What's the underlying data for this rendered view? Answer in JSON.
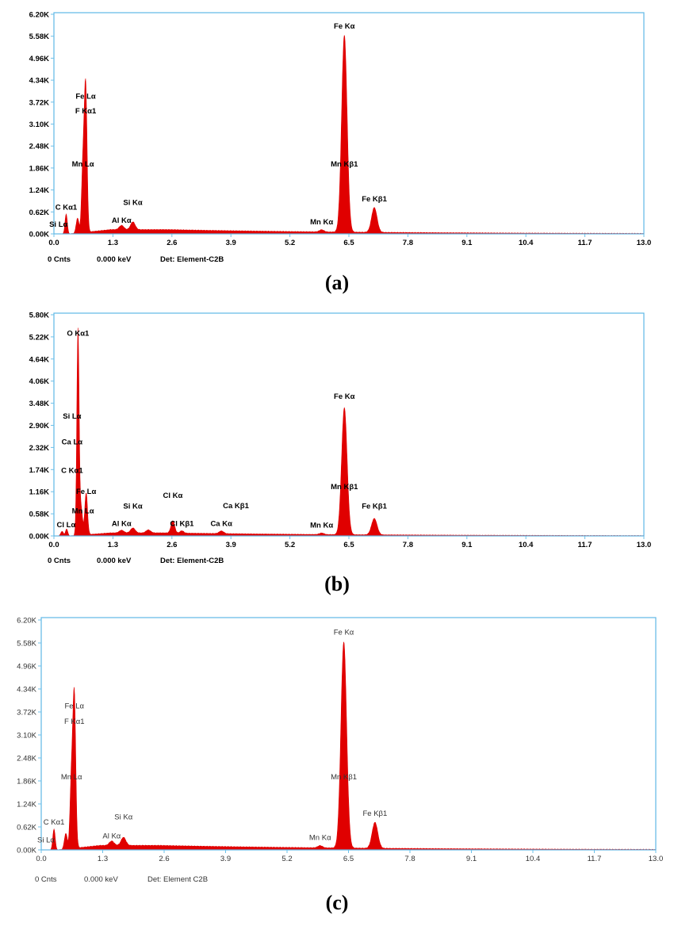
{
  "chart_data": [
    {
      "type": "area",
      "caption": "(a)",
      "style": "bold",
      "xticks": [
        "0.0",
        "1.3",
        "2.6",
        "3.9",
        "5.2",
        "6.5",
        "7.8",
        "9.1",
        "10.4",
        "11.7",
        "13.0"
      ],
      "xlim": [
        0,
        13.0
      ],
      "yticks": [
        "0.00K",
        "0.62K",
        "1.24K",
        "1.86K",
        "2.48K",
        "3.10K",
        "3.72K",
        "4.34K",
        "4.96K",
        "5.58K",
        "6.20K"
      ],
      "ylim": [
        0,
        6200
      ],
      "footer": {
        "counts": "0 Cnts",
        "energy": "0.000 keV",
        "detector": "Det: Element-C2B"
      },
      "series_color": "#e00000",
      "baseline": 120,
      "peaks": [
        {
          "x": 0.27,
          "y": 560,
          "w": 0.025
        },
        {
          "x": 0.52,
          "y": 420,
          "w": 0.03
        },
        {
          "x": 0.64,
          "y": 1900,
          "w": 0.03
        },
        {
          "x": 0.7,
          "y": 4050,
          "w": 0.03
        },
        {
          "x": 1.49,
          "y": 120,
          "w": 0.05
        },
        {
          "x": 1.74,
          "y": 220,
          "w": 0.05
        },
        {
          "x": 5.9,
          "y": 60,
          "w": 0.05
        },
        {
          "x": 6.4,
          "y": 5560,
          "w": 0.06
        },
        {
          "x": 7.06,
          "y": 700,
          "w": 0.06
        }
      ],
      "labels": [
        {
          "text": "Fe Kα",
          "x": 6.4,
          "y": 5800
        },
        {
          "text": "Fe Lα",
          "x": 0.7,
          "y": 3820
        },
        {
          "text": "F  Kα1",
          "x": 0.7,
          "y": 3400
        },
        {
          "text": "Mn Lα",
          "x": 0.64,
          "y": 1900
        },
        {
          "text": "Mn Kβ1",
          "x": 6.4,
          "y": 1900
        },
        {
          "text": "Si Kα",
          "x": 1.74,
          "y": 820
        },
        {
          "text": "Fe Kβ1",
          "x": 7.06,
          "y": 920
        },
        {
          "text": "C  Kα1",
          "x": 0.27,
          "y": 680
        },
        {
          "text": "Al Kα",
          "x": 1.49,
          "y": 310
        },
        {
          "text": "Mn Kα",
          "x": 5.9,
          "y": 270
        },
        {
          "text": "Si Lα",
          "x": 0.1,
          "y": 200
        }
      ]
    },
    {
      "type": "area",
      "caption": "(b)",
      "style": "bold",
      "xticks": [
        "0.0",
        "1.3",
        "2.6",
        "3.9",
        "5.2",
        "6.5",
        "7.8",
        "9.1",
        "10.4",
        "11.7",
        "13.0"
      ],
      "xlim": [
        0,
        13.0
      ],
      "yticks": [
        "0.00K",
        "0.58K",
        "1.16K",
        "1.74K",
        "2.32K",
        "2.90K",
        "3.48K",
        "4.06K",
        "4.64K",
        "5.22K",
        "5.80K"
      ],
      "ylim": [
        0,
        5800
      ],
      "footer": {
        "counts": "0 Cnts",
        "energy": "0.000 keV",
        "detector": "Det: Element-C2B"
      },
      "series_color": "#e00000",
      "baseline": 80,
      "peaks": [
        {
          "x": 0.18,
          "y": 120,
          "w": 0.03
        },
        {
          "x": 0.28,
          "y": 180,
          "w": 0.025
        },
        {
          "x": 0.53,
          "y": 5400,
          "w": 0.025
        },
        {
          "x": 0.6,
          "y": 700,
          "w": 0.03
        },
        {
          "x": 0.71,
          "y": 1100,
          "w": 0.03
        },
        {
          "x": 1.49,
          "y": 70,
          "w": 0.05
        },
        {
          "x": 1.74,
          "y": 130,
          "w": 0.05
        },
        {
          "x": 2.08,
          "y": 80,
          "w": 0.05
        },
        {
          "x": 2.62,
          "y": 320,
          "w": 0.04
        },
        {
          "x": 2.82,
          "y": 60,
          "w": 0.04
        },
        {
          "x": 3.69,
          "y": 70,
          "w": 0.05
        },
        {
          "x": 5.9,
          "y": 40,
          "w": 0.05
        },
        {
          "x": 6.4,
          "y": 3330,
          "w": 0.06
        },
        {
          "x": 7.06,
          "y": 430,
          "w": 0.06
        }
      ],
      "labels": [
        {
          "text": "O  Kα1",
          "x": 0.53,
          "y": 5250
        },
        {
          "text": "Fe Kα",
          "x": 6.4,
          "y": 3600
        },
        {
          "text": "Si Lα",
          "x": 0.4,
          "y": 3080
        },
        {
          "text": "Ca Lα",
          "x": 0.4,
          "y": 2400
        },
        {
          "text": "C  Kα1",
          "x": 0.4,
          "y": 1650
        },
        {
          "text": "Fe Lα",
          "x": 0.71,
          "y": 1100
        },
        {
          "text": "Mn Kβ1",
          "x": 6.4,
          "y": 1230
        },
        {
          "text": "Mn Lα",
          "x": 0.64,
          "y": 590
        },
        {
          "text": "Si Kα",
          "x": 1.74,
          "y": 720
        },
        {
          "text": "Cl Kα",
          "x": 2.62,
          "y": 1000
        },
        {
          "text": "Ca Kβ1",
          "x": 4.01,
          "y": 730
        },
        {
          "text": "Fe Kβ1",
          "x": 7.06,
          "y": 720
        },
        {
          "text": "Cl Lα",
          "x": 0.27,
          "y": 230
        },
        {
          "text": "Al Kα",
          "x": 1.49,
          "y": 260
        },
        {
          "text": "Cl Kβ1",
          "x": 2.82,
          "y": 260
        },
        {
          "text": "Ca Kα",
          "x": 3.69,
          "y": 260
        },
        {
          "text": "Mn Kα",
          "x": 5.9,
          "y": 220
        }
      ]
    },
    {
      "type": "area",
      "caption": "(c)",
      "style": "light",
      "xticks": [
        "0.0",
        "1.3",
        "2.6",
        "3.9",
        "5.2",
        "6.5",
        "7.8",
        "9.1",
        "10.4",
        "11.7",
        "13.0"
      ],
      "xlim": [
        0,
        13.0
      ],
      "yticks": [
        "0.00K",
        "0.62K",
        "1.24K",
        "1.86K",
        "2.48K",
        "3.10K",
        "3.72K",
        "4.34K",
        "4.96K",
        "5.58K",
        "6.20K"
      ],
      "ylim": [
        0,
        6200
      ],
      "footer": {
        "counts": "0 Cnts",
        "energy": "0.000 keV",
        "detector": "Det: Element C2B"
      },
      "series_color": "#e00000",
      "baseline": 120,
      "peaks": [
        {
          "x": 0.27,
          "y": 560,
          "w": 0.025
        },
        {
          "x": 0.52,
          "y": 420,
          "w": 0.03
        },
        {
          "x": 0.64,
          "y": 1900,
          "w": 0.03
        },
        {
          "x": 0.7,
          "y": 4050,
          "w": 0.03
        },
        {
          "x": 1.49,
          "y": 120,
          "w": 0.05
        },
        {
          "x": 1.74,
          "y": 220,
          "w": 0.05
        },
        {
          "x": 5.9,
          "y": 60,
          "w": 0.05
        },
        {
          "x": 6.4,
          "y": 5560,
          "w": 0.06
        },
        {
          "x": 7.06,
          "y": 700,
          "w": 0.06
        }
      ],
      "labels": [
        {
          "text": "Fe Kα",
          "x": 6.4,
          "y": 5800
        },
        {
          "text": "Fe Lα",
          "x": 0.7,
          "y": 3820
        },
        {
          "text": "F  Kα1",
          "x": 0.7,
          "y": 3400
        },
        {
          "text": "Mn Lα",
          "x": 0.64,
          "y": 1900
        },
        {
          "text": "Mn Kβ1",
          "x": 6.4,
          "y": 1900
        },
        {
          "text": "Si Kα",
          "x": 1.74,
          "y": 820
        },
        {
          "text": "Fe Kβ1",
          "x": 7.06,
          "y": 920
        },
        {
          "text": "C  Kα1",
          "x": 0.27,
          "y": 680
        },
        {
          "text": "Al Kα",
          "x": 1.49,
          "y": 310
        },
        {
          "text": "Mn Kα",
          "x": 5.9,
          "y": 270
        },
        {
          "text": "Si Lα",
          "x": 0.1,
          "y": 200
        }
      ]
    }
  ]
}
